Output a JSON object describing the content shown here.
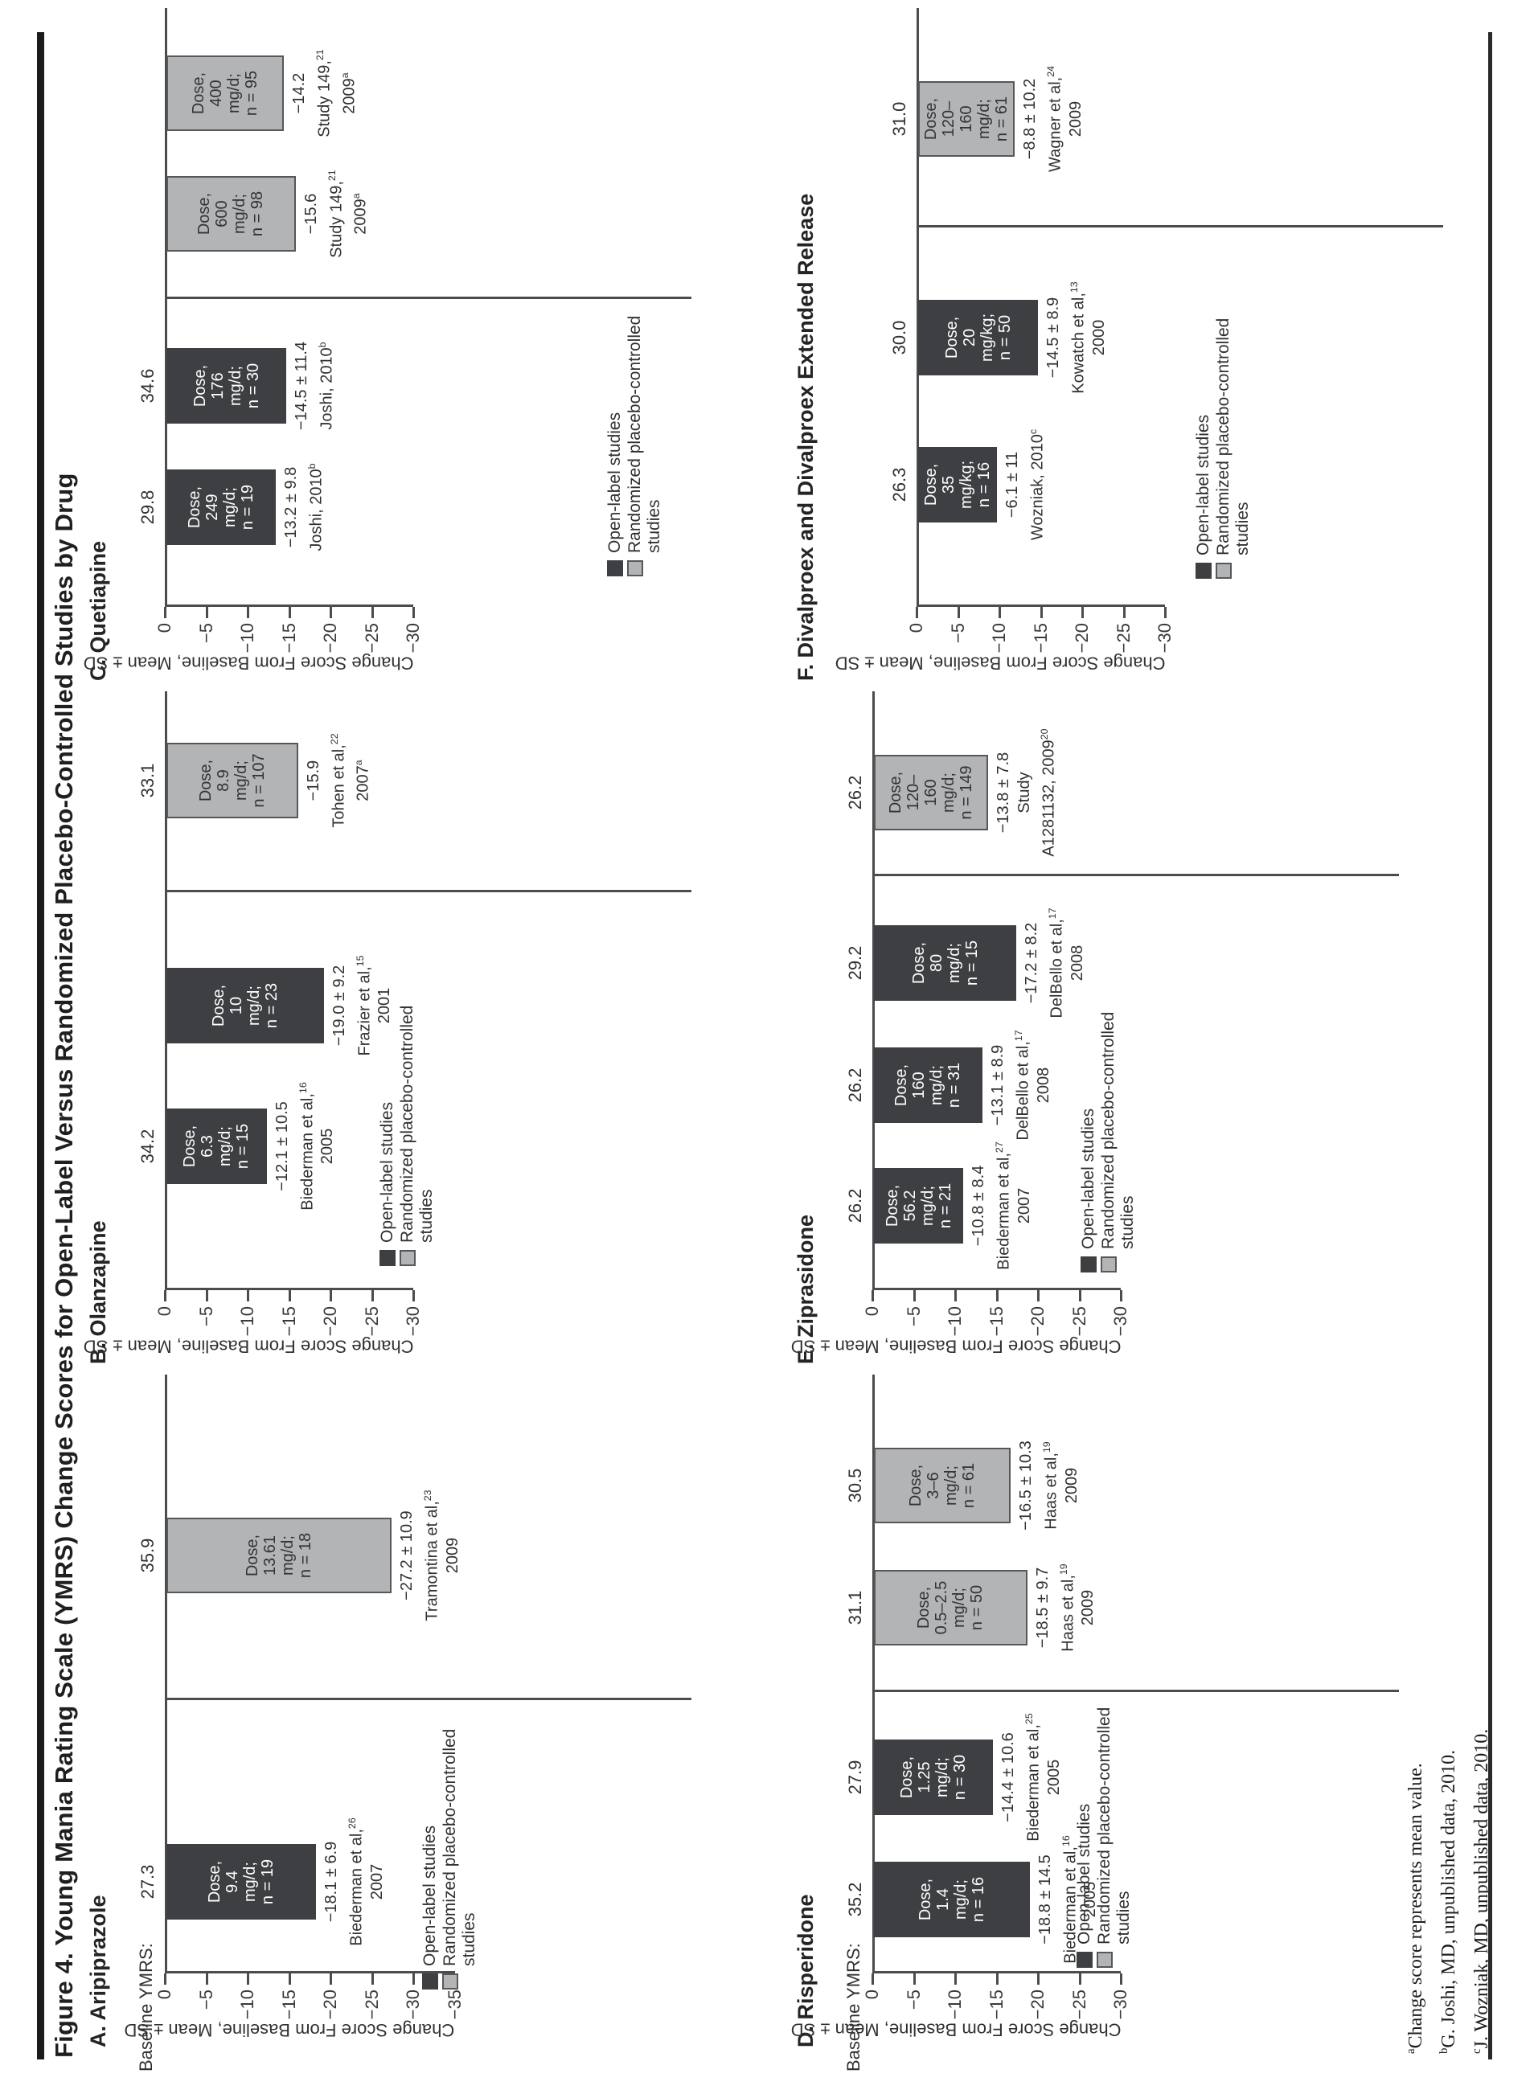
{
  "figure": {
    "title": "Figure 4. Young Mania Rating Scale (YMRS) Change Scores for Open-Label Versus Randomized Placebo-Controlled Studies by Drug",
    "axis": {
      "label": "Change Score From Baseline, Mean ± SD",
      "baseline_header": "Baseline YMRS:"
    },
    "legend": {
      "open_label": "Open-label studies",
      "randomized": "Randomized placebo-controlled studies",
      "randomized_line1": "Randomized placebo-controlled",
      "randomized_line2": "studies"
    },
    "footnotes": [
      {
        "sup": "a",
        "text": "Change score represents mean value."
      },
      {
        "sup": "b",
        "text": "G. Joshi, MD, unpublished data, 2010."
      },
      {
        "sup": "c",
        "text": "J. Wozniak, MD, unpublished data, 2010."
      }
    ]
  },
  "colors": {
    "open_label_bar": "#3e3f42",
    "randomized_bar": "#b3b4b6",
    "bar_border": "#56575a",
    "axis_line": "#4b4c4e"
  },
  "chart_data": [
    {
      "id": "A",
      "type": "bar",
      "label": "A. Aripiprazole",
      "ylabel": "Change Score From Baseline, Mean ± SD",
      "ylim": [
        -35,
        0
      ],
      "tick_step": 5,
      "show_baseline_header": true,
      "bars": [
        {
          "group": "open-label",
          "baseline_ymrs": "27.3",
          "dose_lines": [
            "Dose,",
            "9.4",
            "mg/d;",
            "n = 19"
          ],
          "value": -18.1,
          "sd": 6.9,
          "value_label": "−18.1 ± 6.9",
          "citation": [
            {
              "t": "Biederman et al,",
              "s": "26"
            },
            {
              "t": "2007",
              "s": ""
            }
          ]
        },
        {
          "group": "randomized",
          "baseline_ymrs": "35.9",
          "dose_lines": [
            "Dose,",
            "13.61",
            "mg/d;",
            "n = 18"
          ],
          "value": -27.2,
          "sd": 10.9,
          "value_label": "−27.2 ± 10.9",
          "citation": [
            {
              "t": "Tramontina et al,",
              "s": "23"
            },
            {
              "t": "2009",
              "s": ""
            }
          ]
        }
      ]
    },
    {
      "id": "B",
      "type": "bar",
      "label": "B. Olanzapine",
      "ylabel": "Change Score From Baseline, Mean ± SD",
      "ylim": [
        -30,
        0
      ],
      "tick_step": 5,
      "show_baseline_header": false,
      "bars": [
        {
          "group": "open-label",
          "baseline_ymrs": "34.2",
          "dose_lines": [
            "Dose,",
            "6.3",
            "mg/d;",
            "n = 15"
          ],
          "value": -12.1,
          "sd": 10.5,
          "value_label": "−12.1 ± 10.5",
          "citation": [
            {
              "t": "Biederman et al,",
              "s": "16"
            },
            {
              "t": "2005",
              "s": ""
            }
          ]
        },
        {
          "group": "open-label",
          "baseline_ymrs": "",
          "dose_lines": [
            "Dose,",
            "10",
            "mg/d;",
            "n = 23"
          ],
          "value": -19.0,
          "sd": 9.2,
          "value_label": "−19.0 ± 9.2",
          "citation": [
            {
              "t": "Frazier et al,",
              "s": "15"
            },
            {
              "t": "2001",
              "s": ""
            }
          ]
        },
        {
          "group": "randomized",
          "baseline_ymrs": "33.1",
          "dose_lines": [
            "Dose,",
            "8.9",
            "mg/d;",
            "n = 107"
          ],
          "value": -15.9,
          "sd": null,
          "value_label": "−15.9",
          "citation": [
            {
              "t": "Tohen et al,",
              "s": "22"
            },
            {
              "t": "2007",
              "s": "a"
            }
          ]
        }
      ]
    },
    {
      "id": "C",
      "type": "bar",
      "label": "C. Quetiapine",
      "ylabel": "Change Score From Baseline, Mean ± SD",
      "ylim": [
        -30,
        0
      ],
      "tick_step": 5,
      "show_baseline_header": false,
      "bars": [
        {
          "group": "open-label",
          "baseline_ymrs": "29.8",
          "dose_lines": [
            "Dose,",
            "249",
            "mg/d;",
            "n = 19"
          ],
          "value": -13.2,
          "sd": 9.8,
          "value_label": "−13.2 ± 9.8",
          "citation": [
            {
              "t": "Joshi, 2010",
              "s": "b"
            }
          ]
        },
        {
          "group": "open-label",
          "baseline_ymrs": "34.6",
          "dose_lines": [
            "Dose,",
            "176",
            "mg/d;",
            "n = 30"
          ],
          "value": -14.5,
          "sd": 11.4,
          "value_label": "−14.5 ± 11.4",
          "citation": [
            {
              "t": "Joshi, 2010",
              "s": "b"
            }
          ]
        },
        {
          "group": "randomized",
          "baseline_ymrs": "",
          "dose_lines": [
            "Dose,",
            "600",
            "mg/d;",
            "n = 98"
          ],
          "value": -15.6,
          "sd": null,
          "value_label": "−15.6",
          "citation": [
            {
              "t": "Study 149,",
              "s": "21"
            },
            {
              "t": "2009",
              "s": "a"
            }
          ]
        },
        {
          "group": "randomized",
          "baseline_ymrs": "",
          "dose_lines": [
            "Dose,",
            "400",
            "mg/d;",
            "n = 95"
          ],
          "value": -14.2,
          "sd": null,
          "value_label": "−14.2",
          "citation": [
            {
              "t": "Study 149,",
              "s": "21"
            },
            {
              "t": "2009",
              "s": "a"
            }
          ]
        }
      ]
    },
    {
      "id": "D",
      "type": "bar",
      "label": "D. Risperidone",
      "ylabel": "Change Score From Baseline, Mean ± SD",
      "ylim": [
        -30,
        0
      ],
      "tick_step": 5,
      "show_baseline_header": true,
      "bars": [
        {
          "group": "open-label",
          "baseline_ymrs": "35.2",
          "dose_lines": [
            "Dose,",
            "1.4",
            "mg/d;",
            "n = 16"
          ],
          "value": -18.8,
          "sd": 14.5,
          "value_label": "−18.8 ± 14.5",
          "citation": [
            {
              "t": "Biederman et al,",
              "s": "16"
            },
            {
              "t": "2005",
              "s": ""
            }
          ]
        },
        {
          "group": "open-label",
          "baseline_ymrs": "27.9",
          "dose_lines": [
            "Dose,",
            "1.25",
            "mg/d;",
            "n = 30"
          ],
          "value": -14.4,
          "sd": 10.6,
          "value_label": "−14.4 ± 10.6",
          "citation": [
            {
              "t": "Biederman et al,",
              "s": "25"
            },
            {
              "t": "2005",
              "s": ""
            }
          ]
        },
        {
          "group": "randomized",
          "baseline_ymrs": "31.1",
          "dose_lines": [
            "Dose,",
            "0.5–2.5",
            "mg/d;",
            "n = 50"
          ],
          "value": -18.5,
          "sd": 9.7,
          "value_label": "−18.5 ± 9.7",
          "citation": [
            {
              "t": "Haas et al,",
              "s": "19"
            },
            {
              "t": "2009",
              "s": ""
            }
          ]
        },
        {
          "group": "randomized",
          "baseline_ymrs": "30.5",
          "dose_lines": [
            "Dose,",
            "3–6",
            "mg/d;",
            "n = 61"
          ],
          "value": -16.5,
          "sd": 10.3,
          "value_label": "−16.5 ± 10.3",
          "citation": [
            {
              "t": "Haas et al,",
              "s": "19"
            },
            {
              "t": "2009",
              "s": ""
            }
          ]
        }
      ]
    },
    {
      "id": "E",
      "type": "bar",
      "label": "E. Ziprasidone",
      "ylabel": "Change Score From Baseline, Mean ± SD",
      "ylim": [
        -30,
        0
      ],
      "tick_step": 5,
      "show_baseline_header": false,
      "bars": [
        {
          "group": "open-label",
          "baseline_ymrs": "26.2",
          "dose_lines": [
            "Dose,",
            "56.2",
            "mg/d;",
            "n = 21"
          ],
          "value": -10.8,
          "sd": 8.4,
          "value_label": "−10.8 ± 8.4",
          "citation": [
            {
              "t": "Biederman et al,",
              "s": "27"
            },
            {
              "t": "2007",
              "s": ""
            }
          ]
        },
        {
          "group": "open-label",
          "baseline_ymrs": "26.2",
          "dose_lines": [
            "Dose,",
            "160",
            "mg/d;",
            "n = 31"
          ],
          "value": -13.1,
          "sd": 8.9,
          "value_label": "−13.1 ± 8.9",
          "citation": [
            {
              "t": "DelBello et al,",
              "s": "17"
            },
            {
              "t": "2008",
              "s": ""
            }
          ]
        },
        {
          "group": "open-label",
          "baseline_ymrs": "29.2",
          "dose_lines": [
            "Dose,",
            "80",
            "mg/d;",
            "n = 15"
          ],
          "value": -17.2,
          "sd": 8.2,
          "value_label": "−17.2 ± 8.2",
          "citation": [
            {
              "t": "DelBello et al,",
              "s": "17"
            },
            {
              "t": "2008",
              "s": ""
            }
          ]
        },
        {
          "group": "randomized",
          "baseline_ymrs": "26.2",
          "dose_lines": [
            "Dose,",
            "120–",
            "160",
            "mg/d;",
            "n = 149"
          ],
          "value": -13.8,
          "sd": 7.8,
          "value_label": "−13.8 ± 7.8",
          "citation": [
            {
              "t": "Study",
              "s": ""
            },
            {
              "t": "A1281132, 2009",
              "s": "20"
            }
          ]
        }
      ]
    },
    {
      "id": "F",
      "type": "bar",
      "label": "F. Divalproex and Divalproex Extended Release",
      "ylabel": "Change Score From Baseline, Mean ± SD",
      "ylim": [
        -30,
        0
      ],
      "tick_step": 5,
      "show_baseline_header": false,
      "bars": [
        {
          "group": "open-label",
          "baseline_ymrs": "26.3",
          "dose_lines": [
            "Dose,",
            "35",
            "mg/kg;",
            "n = 16"
          ],
          "value": -6.1,
          "sd": 11,
          "value_label": "−6.1 ± 11",
          "citation": [
            {
              "t": "Wozniak, 2010",
              "s": "c"
            }
          ]
        },
        {
          "group": "open-label",
          "baseline_ymrs": "30.0",
          "dose_lines": [
            "Dose,",
            "20",
            "mg/kg;",
            "n = 50"
          ],
          "value": -14.5,
          "sd": 8.9,
          "value_label": "−14.5 ± 8.9",
          "citation": [
            {
              "t": "Kowatch et al,",
              "s": "13"
            },
            {
              "t": "2000",
              "s": ""
            }
          ]
        },
        {
          "group": "randomized",
          "baseline_ymrs": "31.0",
          "dose_lines": [
            "Dose,",
            "120–",
            "160",
            "mg/d;",
            "n = 61"
          ],
          "value": -8.8,
          "sd": 10.2,
          "value_label": "−8.8 ± 10.2",
          "citation": [
            {
              "t": "Wagner et al,",
              "s": "24"
            },
            {
              "t": "2009",
              "s": ""
            }
          ]
        }
      ]
    }
  ]
}
